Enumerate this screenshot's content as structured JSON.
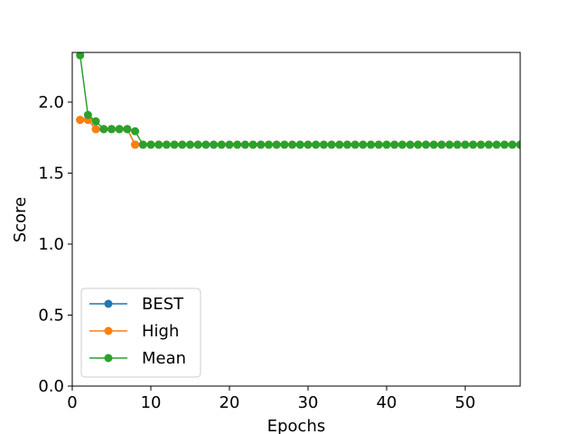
{
  "chart_data": {
    "type": "line",
    "title": "",
    "xlabel": "Epochs",
    "ylabel": "Score",
    "xlim": [
      0,
      57
    ],
    "ylim": [
      0.0,
      2.35
    ],
    "xticks": [
      0,
      10,
      20,
      30,
      40,
      50
    ],
    "xtick_labels": [
      "0",
      "10",
      "20",
      "30",
      "40",
      "50"
    ],
    "yticks": [
      0.0,
      0.5,
      1.0,
      1.5,
      2.0
    ],
    "ytick_labels": [
      "0.0",
      "0.5",
      "1.0",
      "1.5",
      "2.0"
    ],
    "grid": false,
    "legend_position": "bottom-left",
    "x": [
      1,
      2,
      3,
      4,
      5,
      6,
      7,
      8,
      9,
      10,
      11,
      12,
      13,
      14,
      15,
      16,
      17,
      18,
      19,
      20,
      21,
      22,
      23,
      24,
      25,
      26,
      27,
      28,
      29,
      30,
      31,
      32,
      33,
      34,
      35,
      36,
      37,
      38,
      39,
      40,
      41,
      42,
      43,
      44,
      45,
      46,
      47,
      48,
      49,
      50,
      51,
      52,
      53,
      54,
      55,
      56,
      57
    ],
    "series": [
      {
        "name": "BEST",
        "color": "#1f77b4",
        "values": [
          1.875,
          1.875,
          1.81,
          1.81,
          1.81,
          1.81,
          1.81,
          1.7,
          1.7,
          1.7,
          1.7,
          1.7,
          1.7,
          1.7,
          1.7,
          1.7,
          1.7,
          1.7,
          1.7,
          1.7,
          1.7,
          1.7,
          1.7,
          1.7,
          1.7,
          1.7,
          1.7,
          1.7,
          1.7,
          1.7,
          1.7,
          1.7,
          1.7,
          1.7,
          1.7,
          1.7,
          1.7,
          1.7,
          1.7,
          1.7,
          1.7,
          1.7,
          1.7,
          1.7,
          1.7,
          1.7,
          1.7,
          1.7,
          1.7,
          1.7,
          1.7,
          1.7,
          1.7,
          1.7,
          1.7,
          1.7,
          1.7
        ]
      },
      {
        "name": "High",
        "color": "#ff7f0e",
        "values": [
          1.875,
          1.875,
          1.81,
          1.81,
          1.81,
          1.81,
          1.81,
          1.7,
          1.7,
          1.7,
          1.7,
          1.7,
          1.7,
          1.7,
          1.7,
          1.7,
          1.7,
          1.7,
          1.7,
          1.7,
          1.7,
          1.7,
          1.7,
          1.7,
          1.7,
          1.7,
          1.7,
          1.7,
          1.7,
          1.7,
          1.7,
          1.7,
          1.7,
          1.7,
          1.7,
          1.7,
          1.7,
          1.7,
          1.7,
          1.7,
          1.7,
          1.7,
          1.7,
          1.7,
          1.7,
          1.7,
          1.7,
          1.7,
          1.7,
          1.7,
          1.7,
          1.7,
          1.7,
          1.7,
          1.7,
          1.7,
          1.7
        ]
      },
      {
        "name": "Mean",
        "color": "#2ca02c",
        "values": [
          2.33,
          1.91,
          1.865,
          1.81,
          1.81,
          1.81,
          1.81,
          1.795,
          1.7,
          1.7,
          1.7,
          1.7,
          1.7,
          1.7,
          1.7,
          1.7,
          1.7,
          1.7,
          1.7,
          1.7,
          1.7,
          1.7,
          1.7,
          1.7,
          1.7,
          1.7,
          1.7,
          1.7,
          1.7,
          1.7,
          1.7,
          1.7,
          1.7,
          1.7,
          1.7,
          1.7,
          1.7,
          1.7,
          1.7,
          1.7,
          1.7,
          1.7,
          1.7,
          1.7,
          1.7,
          1.7,
          1.7,
          1.7,
          1.7,
          1.7,
          1.7,
          1.7,
          1.7,
          1.7,
          1.7,
          1.7,
          1.7
        ]
      }
    ]
  }
}
